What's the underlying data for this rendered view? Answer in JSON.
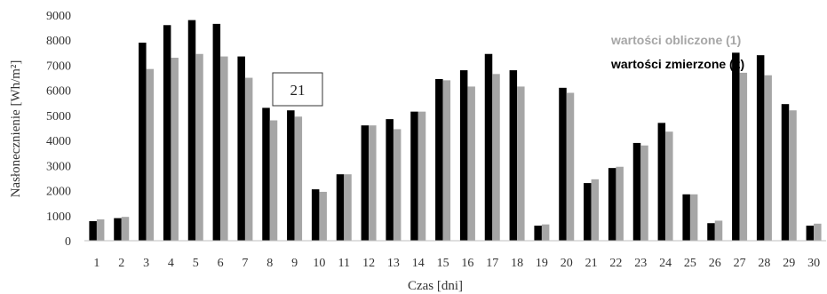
{
  "chart_data": {
    "type": "bar",
    "title": "",
    "xlabel": "Czas [dni]",
    "ylabel": "Nasłonecznienie [Wh/m²]",
    "ylim": [
      0,
      9000
    ],
    "yticks": [
      0,
      1000,
      2000,
      3000,
      4000,
      5000,
      6000,
      7000,
      8000,
      9000
    ],
    "categories": [
      "1",
      "2",
      "3",
      "4",
      "5",
      "6",
      "7",
      "8",
      "9",
      "10",
      "11",
      "12",
      "13",
      "14",
      "15",
      "16",
      "17",
      "18",
      "19",
      "20",
      "21",
      "22",
      "23",
      "24",
      "25",
      "26",
      "27",
      "28",
      "29",
      "30"
    ],
    "series": [
      {
        "name": "wartości zmierzone (2)",
        "color": "#000000",
        "values": [
          780,
          900,
          7900,
          8600,
          8800,
          8650,
          7350,
          5300,
          5200,
          2050,
          2650,
          4600,
          4850,
          5150,
          6450,
          6800,
          7450,
          6800,
          600,
          6100,
          2300,
          2900,
          3900,
          4700,
          1850,
          700,
          7500,
          7400,
          5450,
          600
        ]
      },
      {
        "name": "wartości obliczone (1)",
        "color": "#a6a6a6",
        "values": [
          850,
          950,
          6850,
          7300,
          7450,
          7350,
          6500,
          4800,
          4950,
          1950,
          2650,
          4600,
          4450,
          5150,
          6400,
          6150,
          6650,
          6150,
          650,
          5900,
          2450,
          2950,
          3800,
          4350,
          1850,
          800,
          6700,
          6600,
          5200,
          680
        ]
      }
    ],
    "legend_position": "top-right",
    "annotations": [
      {
        "text": "21",
        "near_category": "9"
      }
    ],
    "grid": false
  }
}
